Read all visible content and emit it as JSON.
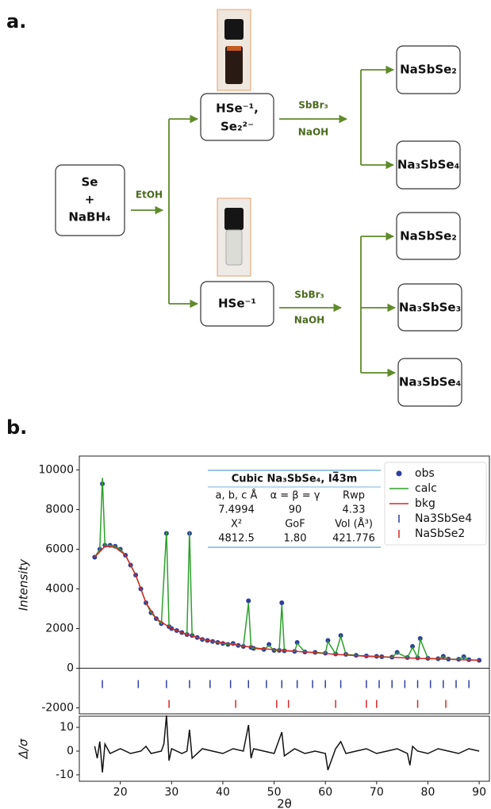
{
  "panel_a": {
    "label": "a.",
    "nodes": [
      {
        "lines": [
          "Se",
          "+",
          "NaBH₄"
        ]
      },
      {
        "lines": [
          "HSe⁻¹,",
          "Se₂²⁻"
        ]
      },
      {
        "lines": [
          "HSe⁻¹"
        ]
      },
      {
        "lines": [
          "NaSbSe₂"
        ]
      },
      {
        "lines": [
          "Na₃SbSe₄"
        ]
      },
      {
        "lines": [
          "NaSbSe₂"
        ]
      },
      {
        "lines": [
          "Na₃SbSe₃"
        ]
      },
      {
        "lines": [
          "Na₃SbSe₄"
        ]
      }
    ],
    "edges": [
      {
        "labels": [
          "EtOH"
        ]
      },
      {
        "labels": [
          "SbBr₃",
          "NaOH"
        ]
      },
      {
        "labels": [
          "SbBr₃",
          "NaOH"
        ]
      }
    ]
  },
  "panel_b": {
    "label": "b."
  },
  "chart_data": [
    {
      "type": "line",
      "ylabel": "Intensity",
      "xlim": [
        12,
        92
      ],
      "ylim": [
        -2300,
        10700
      ],
      "yticks": [
        -2000,
        0,
        2000,
        4000,
        6000,
        8000,
        10000
      ],
      "hline": 0,
      "legend": "upper right",
      "table": {
        "title": "Cubic Na₃SbSe₄, I4̅3m",
        "rows": [
          [
            "a, b, c Å",
            "α = β = γ",
            "Rwp"
          ],
          [
            "7.4994",
            "90",
            "4.33"
          ],
          [
            "X²",
            "GoF",
            "Vol (Å³)"
          ],
          [
            "4812.5",
            "1.80",
            "421.776"
          ]
        ]
      },
      "series": [
        {
          "name": "obs",
          "style": "marker",
          "color": "#2e3f9e",
          "x": [
            15,
            16,
            16.5,
            17,
            18,
            19,
            20,
            21,
            22,
            23,
            24,
            25,
            26,
            27,
            28,
            29,
            29.5,
            30,
            31,
            32,
            33,
            33.5,
            34,
            35,
            36,
            37,
            38,
            39,
            40,
            41,
            42,
            43,
            44,
            45,
            45.5,
            46,
            48,
            49,
            50,
            51,
            51.5,
            52,
            54,
            54.5,
            56,
            58,
            60,
            60.5,
            62,
            63,
            64,
            66,
            68,
            70,
            71,
            73,
            74,
            76,
            77,
            78,
            78.5,
            80,
            82,
            83,
            84,
            86,
            87,
            88,
            90
          ],
          "values": [
            5600,
            6000,
            9300,
            6200,
            6200,
            6150,
            6000,
            5700,
            5200,
            4700,
            4000,
            3300,
            2800,
            2500,
            2250,
            6800,
            2100,
            2000,
            1900,
            1800,
            1700,
            6800,
            1650,
            1550,
            1450,
            1400,
            1350,
            1300,
            1250,
            1200,
            1250,
            1150,
            1100,
            3400,
            1050,
            1000,
            950,
            1200,
            900,
            900,
            3300,
            880,
            850,
            1300,
            820,
            800,
            760,
            1400,
            720,
            1650,
            700,
            650,
            620,
            600,
            580,
            560,
            800,
            540,
            1100,
            520,
            1500,
            500,
            480,
            600,
            460,
            450,
            580,
            430,
            400
          ]
        },
        {
          "name": "calc",
          "style": "line",
          "color": "#2ca02c",
          "x": [
            15,
            16,
            16.5,
            17,
            18,
            19,
            20,
            21,
            22,
            23,
            24,
            25,
            26,
            27,
            28,
            29,
            29.5,
            30,
            31,
            32,
            33,
            33.5,
            34,
            35,
            36,
            37,
            38,
            39,
            40,
            41,
            42,
            43,
            44,
            45,
            45.5,
            46,
            48,
            49,
            50,
            51,
            51.5,
            52,
            54,
            54.5,
            56,
            58,
            60,
            60.5,
            62,
            63,
            64,
            66,
            68,
            70,
            71,
            73,
            74,
            76,
            77,
            78,
            78.5,
            80,
            82,
            83,
            84,
            86,
            87,
            88,
            90
          ],
          "values": [
            5600,
            6000,
            9600,
            6200,
            6200,
            6150,
            6000,
            5700,
            5200,
            4700,
            4000,
            3300,
            2800,
            2500,
            2250,
            6900,
            2100,
            2000,
            1900,
            1800,
            1700,
            6900,
            1650,
            1550,
            1450,
            1400,
            1350,
            1300,
            1250,
            1200,
            1250,
            1150,
            1100,
            3300,
            1050,
            1000,
            950,
            1150,
            900,
            900,
            3200,
            880,
            850,
            1250,
            820,
            800,
            760,
            1350,
            720,
            1600,
            700,
            650,
            620,
            600,
            580,
            560,
            780,
            540,
            1050,
            520,
            1450,
            500,
            480,
            580,
            460,
            450,
            560,
            430,
            400
          ]
        },
        {
          "name": "bkg",
          "style": "line",
          "color": "#d62728",
          "x": [
            15,
            17,
            19,
            21,
            23,
            25,
            27,
            30,
            33,
            37,
            42,
            47,
            52,
            57,
            62,
            68,
            73,
            78,
            84,
            90
          ],
          "values": [
            5600,
            6150,
            6100,
            5700,
            4700,
            3300,
            2500,
            2000,
            1700,
            1400,
            1200,
            1000,
            900,
            800,
            700,
            600,
            550,
            500,
            450,
            400
          ]
        },
        {
          "name": "Na3SbSe4",
          "style": "tick",
          "color": "#2e3f9e",
          "x": [
            16.5,
            23.5,
            29,
            33.5,
            37.5,
            41.5,
            45,
            48.5,
            51.5,
            54.5,
            57.5,
            60,
            63,
            68,
            70.5,
            73,
            75.5,
            78,
            80.5,
            83,
            85.5,
            88
          ],
          "values": [
            -800,
            -800,
            -800,
            -800,
            -800,
            -800,
            -800,
            -800,
            -800,
            -800,
            -800,
            -800,
            -800,
            -800,
            -800,
            -800,
            -800,
            -800,
            -800,
            -800,
            -800,
            -800
          ]
        },
        {
          "name": "NaSbSe2",
          "style": "tick",
          "color": "#d62728",
          "x": [
            29.5,
            42.5,
            50.5,
            52.8,
            62,
            68,
            70,
            78,
            83.5
          ],
          "values": [
            -1800,
            -1800,
            -1800,
            -1800,
            -1800,
            -1800,
            -1800,
            -1800,
            -1800
          ]
        }
      ]
    },
    {
      "type": "line",
      "ylabel": "Δ/σ",
      "xlabel": "2θ",
      "xlim": [
        12,
        92
      ],
      "ylim": [
        -12.7,
        14.7
      ],
      "xticks": [
        20,
        30,
        40,
        50,
        60,
        70,
        80,
        90
      ],
      "yticks": [
        -10,
        0,
        10
      ],
      "series": [
        {
          "style": "line",
          "color": "#111111",
          "x": [
            15,
            15.5,
            16,
            16.5,
            17,
            18,
            20,
            22,
            24,
            25,
            26,
            28,
            28.5,
            29,
            29.5,
            30,
            32,
            33,
            33.5,
            34,
            36,
            38,
            40,
            42,
            44,
            45,
            45.5,
            46,
            48,
            50,
            51.5,
            52,
            54,
            56,
            58,
            60,
            60.5,
            62,
            63,
            64,
            66,
            68,
            70,
            72,
            74,
            76,
            76.5,
            77,
            78,
            80,
            82,
            84,
            86,
            88,
            90
          ],
          "values": [
            2,
            -3,
            4,
            -9,
            3,
            -1,
            1,
            -1,
            0,
            2,
            -1,
            0,
            3,
            15,
            -4,
            1,
            -1,
            0,
            9,
            -3,
            1,
            0,
            -1,
            1,
            0,
            11,
            -3,
            1,
            0,
            -1,
            8,
            -2,
            1,
            -1,
            0,
            -1,
            -8,
            1,
            4,
            -1,
            0,
            1,
            -1,
            0,
            1,
            -1,
            -6,
            2,
            0,
            -1,
            1,
            0,
            -1,
            1,
            0
          ]
        }
      ]
    }
  ]
}
